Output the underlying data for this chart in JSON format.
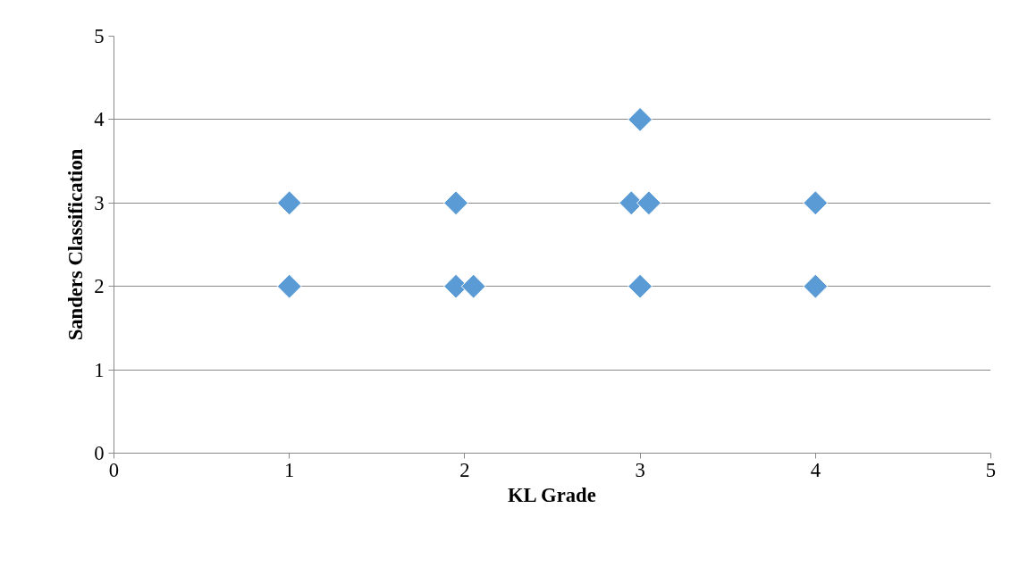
{
  "chart_data": {
    "type": "scatter",
    "xlabel": "KL Grade",
    "ylabel": "Sanders Classification",
    "series": [
      {
        "color": "#5b9bd5",
        "x": [
          1,
          1,
          1.95,
          1.95,
          2.05,
          2.95,
          3.05,
          3,
          3,
          4,
          4
        ],
        "values": [
          3,
          2,
          3,
          2,
          2,
          3,
          3,
          4,
          2,
          3,
          2
        ]
      }
    ],
    "xlim": [
      0,
      5
    ],
    "ylim": [
      0,
      5
    ],
    "xticks": [
      0,
      1,
      2,
      3,
      4,
      5
    ],
    "yticks": [
      0,
      1,
      2,
      3,
      4,
      5
    ],
    "grid": "y",
    "marker": "diamond"
  }
}
